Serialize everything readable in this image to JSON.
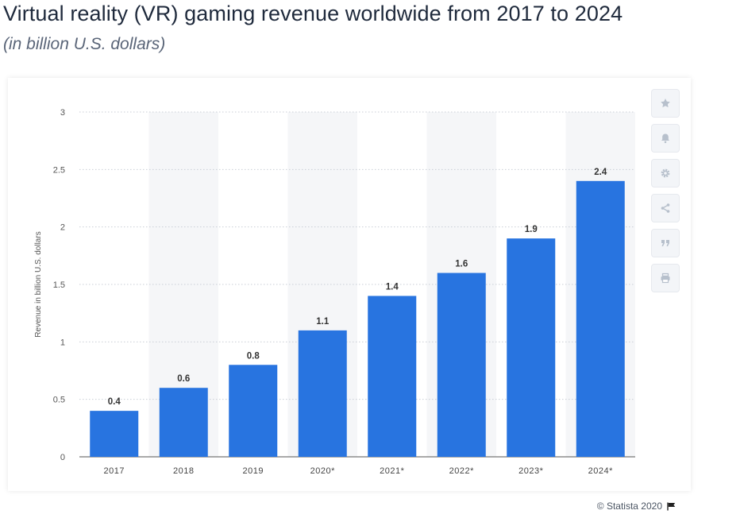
{
  "header": {
    "title": "Virtual reality (VR) gaming revenue worldwide from 2017 to 2024",
    "subtitle": "(in billion U.S. dollars)"
  },
  "chart_data": {
    "type": "bar",
    "categories": [
      "2017",
      "2018",
      "2019",
      "2020*",
      "2021*",
      "2022*",
      "2023*",
      "2024*"
    ],
    "values": [
      0.4,
      0.6,
      0.8,
      1.1,
      1.4,
      1.6,
      1.9,
      2.4
    ],
    "value_labels": [
      "0.4",
      "0.6",
      "0.8",
      "1.1",
      "1.4",
      "1.6",
      "1.9",
      "2.4"
    ],
    "ylabel": "Revenue in billion U.S. dollars",
    "xlabel": "",
    "ylim": [
      0,
      3
    ],
    "yticks": [
      0,
      0.5,
      1,
      1.5,
      2,
      2.5,
      3
    ],
    "ytick_labels": [
      "0",
      "0.5",
      "1",
      "1.5",
      "2",
      "2.5",
      "3"
    ],
    "grid": true,
    "alternating_column_shading": true,
    "bar_color": "#2874e0",
    "shade_color": "#f5f6f8"
  },
  "toolbar": {
    "icons": [
      "star-icon",
      "bell-icon",
      "gear-icon",
      "share-icon",
      "quote-icon",
      "print-icon"
    ]
  },
  "footer": {
    "credit": "© Statista 2020",
    "icon": "flag-icon"
  }
}
